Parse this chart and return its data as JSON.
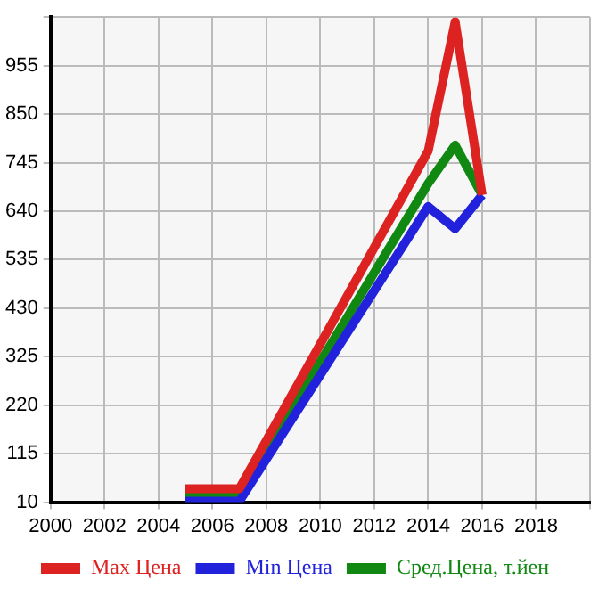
{
  "chart_data": {
    "type": "line",
    "series": [
      {
        "name": "Max Цена",
        "color": "#dd2222",
        "x": [
          2005,
          2007,
          2014,
          2015,
          2016
        ],
        "values": [
          39,
          39,
          770,
          1050,
          675
        ]
      },
      {
        "name": "Min Цена",
        "color": "#2222dd",
        "x": [
          2005,
          2007,
          2014,
          2015,
          2016
        ],
        "values": [
          12,
          12,
          650,
          602,
          675
        ]
      },
      {
        "name": "Сред.Цена, т.йен",
        "color": "#118811",
        "x": [
          2005,
          2007,
          2014,
          2015,
          2016
        ],
        "values": [
          24,
          24,
          700,
          783,
          675
        ]
      }
    ],
    "xlim": [
      2000,
      2020
    ],
    "xticks": [
      2000,
      2002,
      2004,
      2006,
      2008,
      2010,
      2012,
      2014,
      2016,
      2018,
      {
        "value": 2020,
        "label": null
      }
    ],
    "ylim": [
      10,
      1060
    ],
    "yticks": [
      10,
      115,
      220,
      325,
      430,
      535,
      640,
      745,
      850,
      955,
      {
        "value": 1060,
        "label": null
      }
    ],
    "grid": true,
    "legend": "bottom",
    "marker": "none",
    "line_style": "solid"
  }
}
